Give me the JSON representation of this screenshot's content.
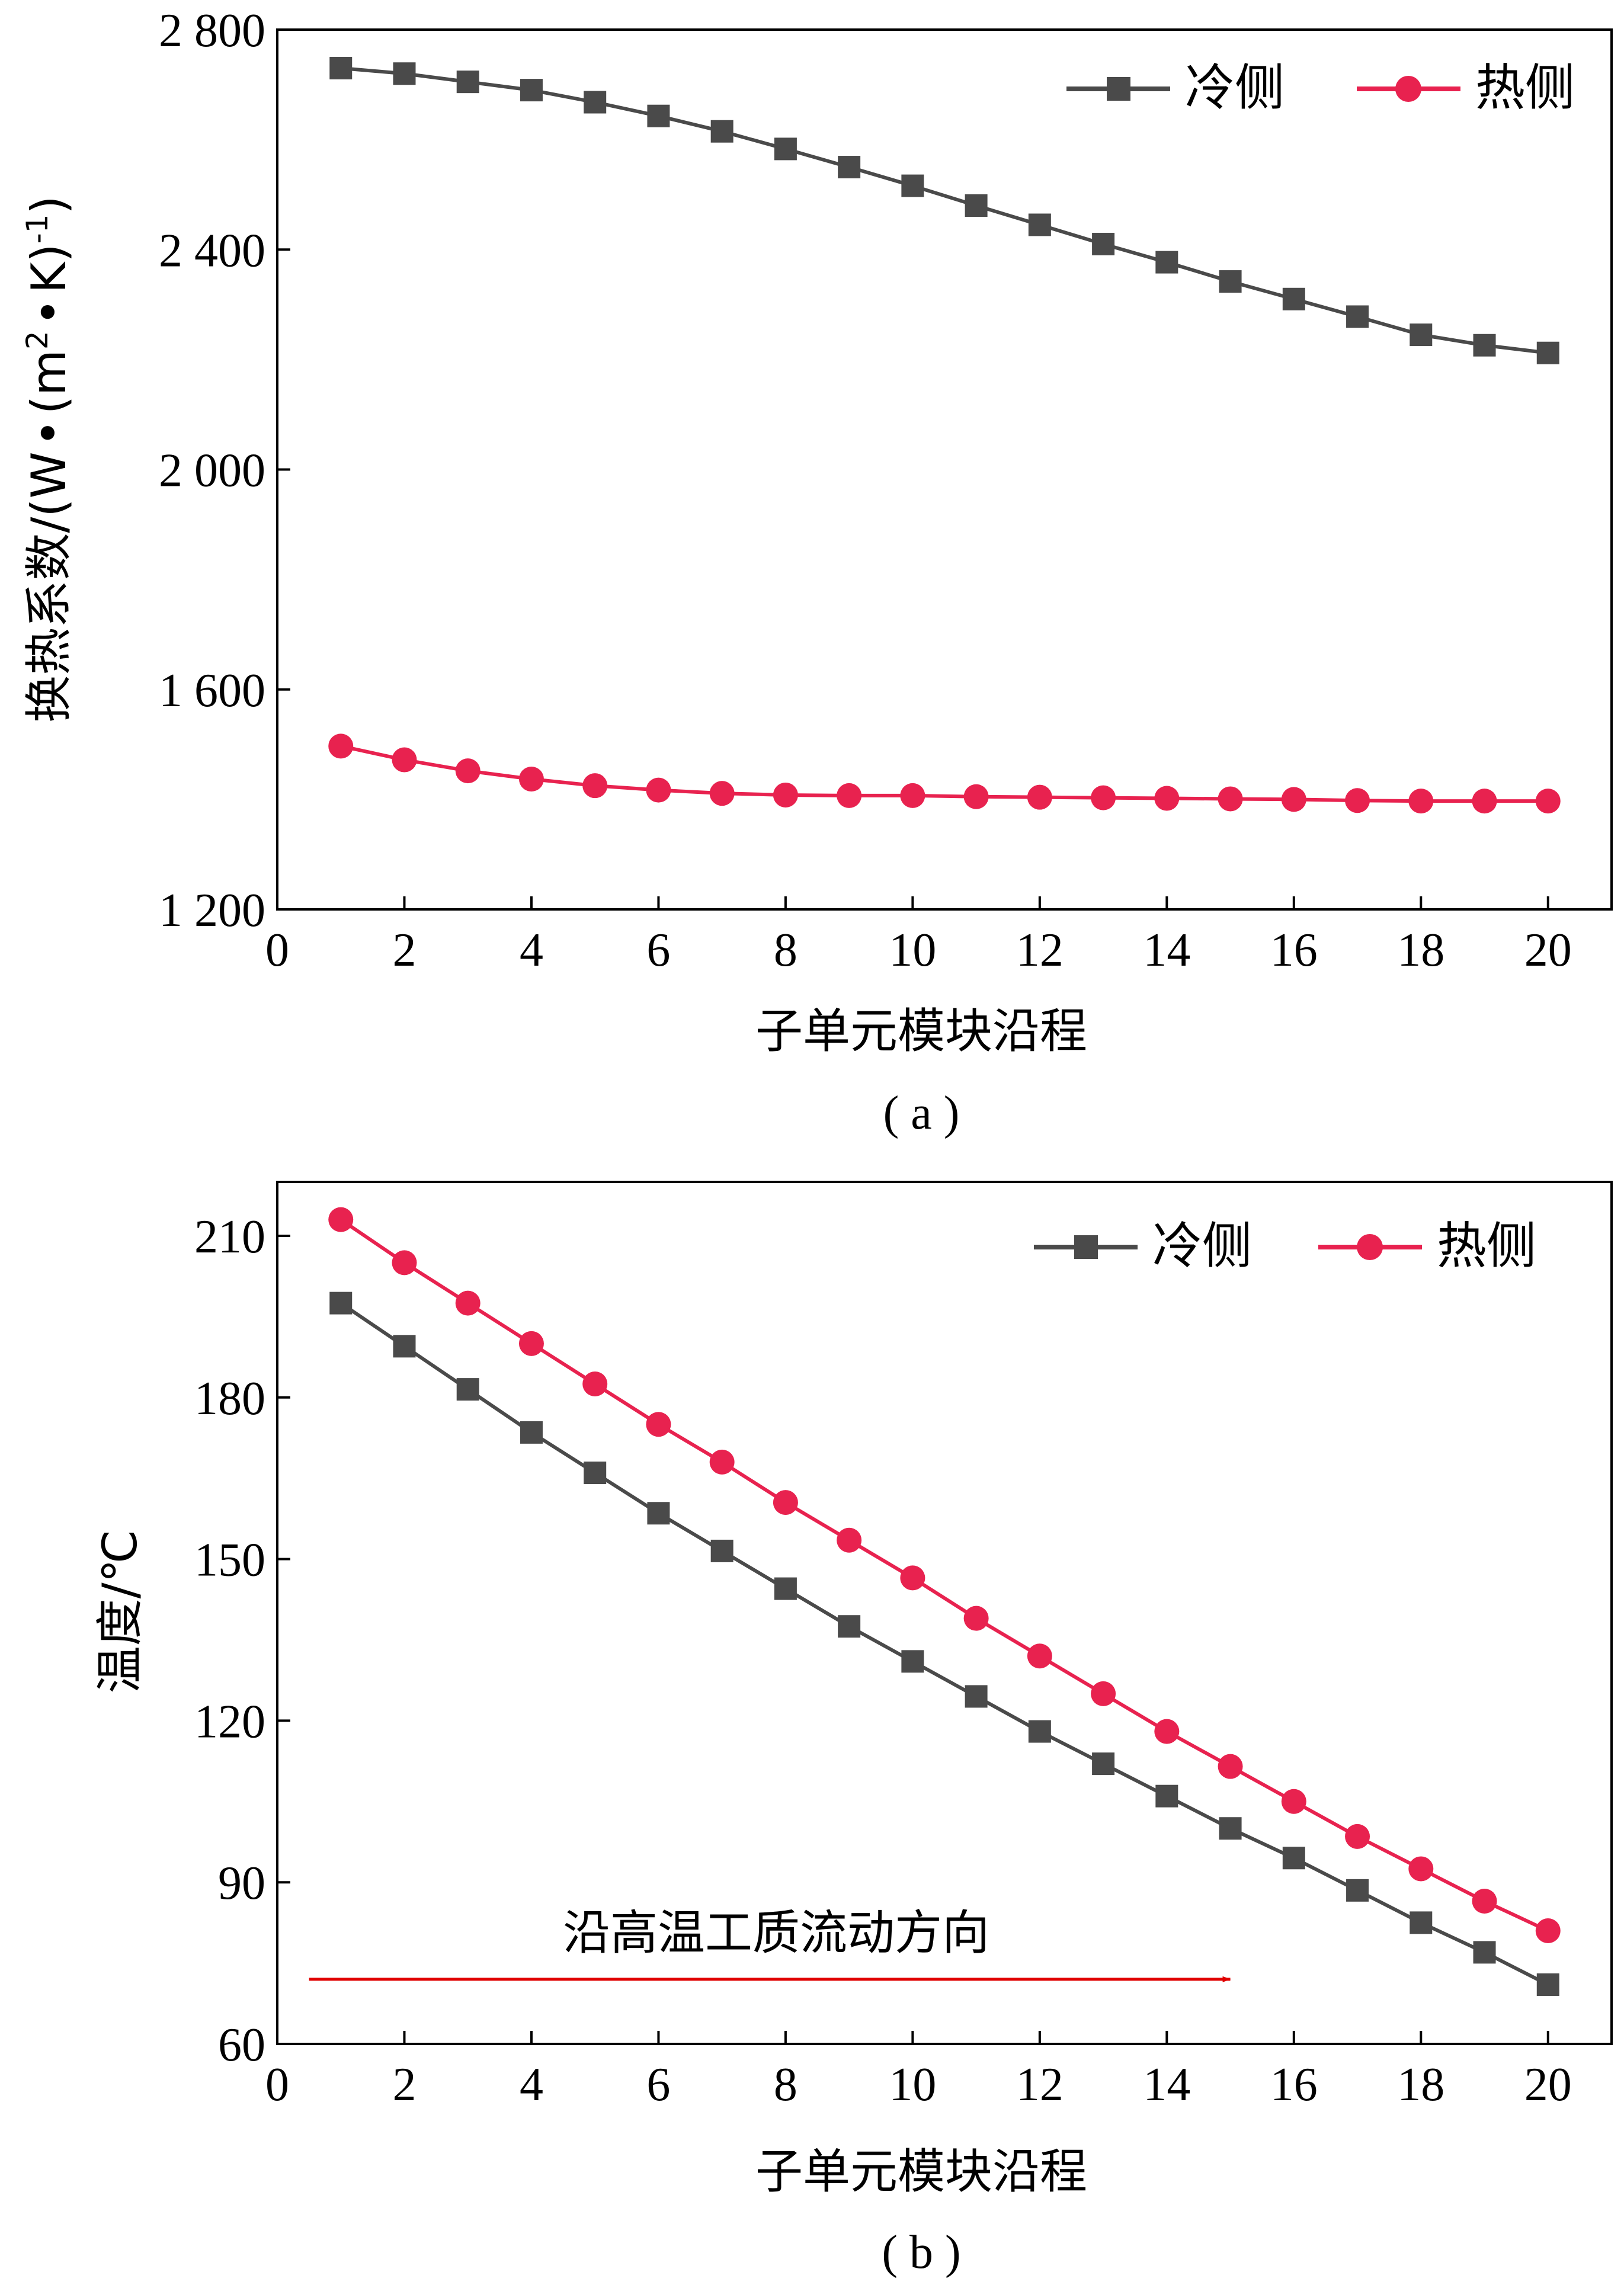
{
  "chart_data": [
    {
      "type": "line",
      "caption": "( a )",
      "xlabel": "子单元模块沿程",
      "ylabel": "换热系数/(W·(m²·K)⁻¹)",
      "ylabel_parts": {
        "main": "换热系数/(W",
        "bullet1": "•",
        "paren": "(m",
        "sup2": "2",
        "bullet2": "•",
        "k": "K)",
        "supneg": "-1",
        "close": ")"
      },
      "xlim": [
        0,
        21
      ],
      "ylim": [
        1200,
        2800
      ],
      "xticks": [
        0,
        2,
        4,
        6,
        8,
        10,
        12,
        14,
        16,
        18,
        20
      ],
      "yticks": [
        1200,
        1600,
        2000,
        2400,
        2800
      ],
      "ytick_labels": [
        "1 200",
        "1 600",
        "2 000",
        "2 400",
        "2 800"
      ],
      "legend_position": "top-right",
      "x": [
        1,
        2,
        3,
        4,
        5,
        6,
        7,
        8,
        9,
        10,
        11,
        12,
        13,
        14,
        15,
        16,
        17,
        18,
        19,
        20
      ],
      "series": [
        {
          "name": "冷侧",
          "color": "#4a4a4a",
          "marker": "square",
          "values": [
            2730,
            2720,
            2705,
            2690,
            2668,
            2643,
            2615,
            2583,
            2550,
            2516,
            2480,
            2445,
            2410,
            2377,
            2342,
            2310,
            2278,
            2245,
            2226,
            2212
          ]
        },
        {
          "name": "热侧",
          "color": "#e8224f",
          "marker": "circle",
          "values": [
            1497,
            1472,
            1452,
            1437,
            1425,
            1417,
            1411,
            1408,
            1407,
            1407,
            1405,
            1404,
            1403,
            1402,
            1401,
            1400,
            1398,
            1397,
            1397,
            1397
          ]
        }
      ]
    },
    {
      "type": "line",
      "caption": "( b )",
      "xlabel": "子单元模块沿程",
      "ylabel": "温度/℃",
      "xlim": [
        0,
        21
      ],
      "ylim": [
        60,
        220
      ],
      "xticks": [
        0,
        2,
        4,
        6,
        8,
        10,
        12,
        14,
        16,
        18,
        20
      ],
      "yticks": [
        60,
        90,
        120,
        150,
        180,
        210
      ],
      "ytick_labels": [
        "60",
        "90",
        "120",
        "150",
        "180",
        "210"
      ],
      "legend_position": "top-right",
      "annotation": {
        "text": "沿高温工质流动方向",
        "arrow_color": "#e00000",
        "arrow_from_x": 0.5,
        "arrow_to_x": 15,
        "arrow_y": 72
      },
      "x": [
        1,
        2,
        3,
        4,
        5,
        6,
        7,
        8,
        9,
        10,
        11,
        12,
        13,
        14,
        15,
        16,
        17,
        18,
        19,
        20
      ],
      "series": [
        {
          "name": "冷侧",
          "color": "#4a4a4a",
          "marker": "square",
          "values": [
            197.5,
            189.5,
            181.5,
            173.5,
            166,
            158.5,
            151.5,
            144.5,
            137.5,
            131,
            124.5,
            118,
            112,
            106,
            100,
            94.5,
            88.5,
            82.5,
            77,
            71
          ]
        },
        {
          "name": "热侧",
          "color": "#e8224f",
          "marker": "circle",
          "values": [
            213,
            205,
            197.5,
            190,
            182.5,
            175,
            168,
            160.5,
            153.5,
            146.5,
            139,
            132,
            125,
            118,
            111.5,
            105,
            98.5,
            92.5,
            86.5,
            81
          ]
        }
      ]
    }
  ]
}
